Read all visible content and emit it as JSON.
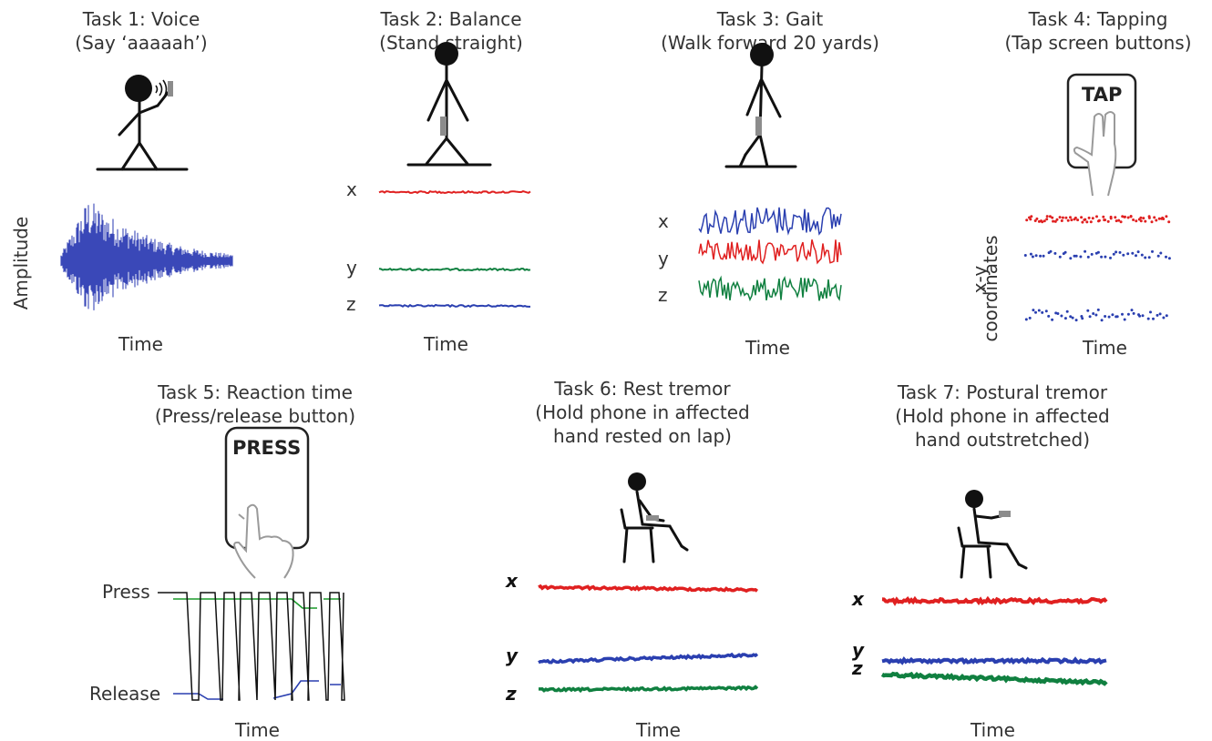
{
  "tasks": [
    {
      "title": "Task 1: Voice",
      "subtitle": "(Say ‘aaaaah’)",
      "ylabel": "Amplitude",
      "xlabel": "Time"
    },
    {
      "title": "Task 2: Balance",
      "subtitle": "(Stand straight)",
      "xlabel": "Time",
      "axes": [
        "x",
        "y",
        "z"
      ]
    },
    {
      "title": "Task 3: Gait",
      "subtitle": "(Walk forward 20 yards)",
      "xlabel": "Time",
      "axes": [
        "x",
        "y",
        "z"
      ]
    },
    {
      "title": "Task 4: Tapping",
      "subtitle": "(Tap screen buttons)",
      "button": "TAP",
      "ylabel_1": "x-y",
      "ylabel_2": "coordinates",
      "xlabel": "Time"
    },
    {
      "title": "Task 5: Reaction time",
      "subtitle": "(Press/release button)",
      "button": "PRESS",
      "press": "Press",
      "release": "Release",
      "xlabel": "Time"
    },
    {
      "title": "Task 6: Rest tremor",
      "subtitle_1": "(Hold phone in affected",
      "subtitle_2": "hand rested on lap)",
      "xlabel": "Time",
      "axes": [
        "x",
        "y",
        "z"
      ]
    },
    {
      "title": "Task 7: Postural tremor",
      "subtitle_1": "(Hold phone in affected",
      "subtitle_2": "hand outstretched)",
      "xlabel": "Time",
      "axes": [
        "x",
        "y",
        "z"
      ]
    }
  ],
  "colors": {
    "x": "#e02020",
    "y": "#2a3fb0",
    "z": "#108040",
    "voice": "#3a48b8",
    "dark": "#111111",
    "gray": "#8c8c8c",
    "press": "#1a9a2a"
  }
}
